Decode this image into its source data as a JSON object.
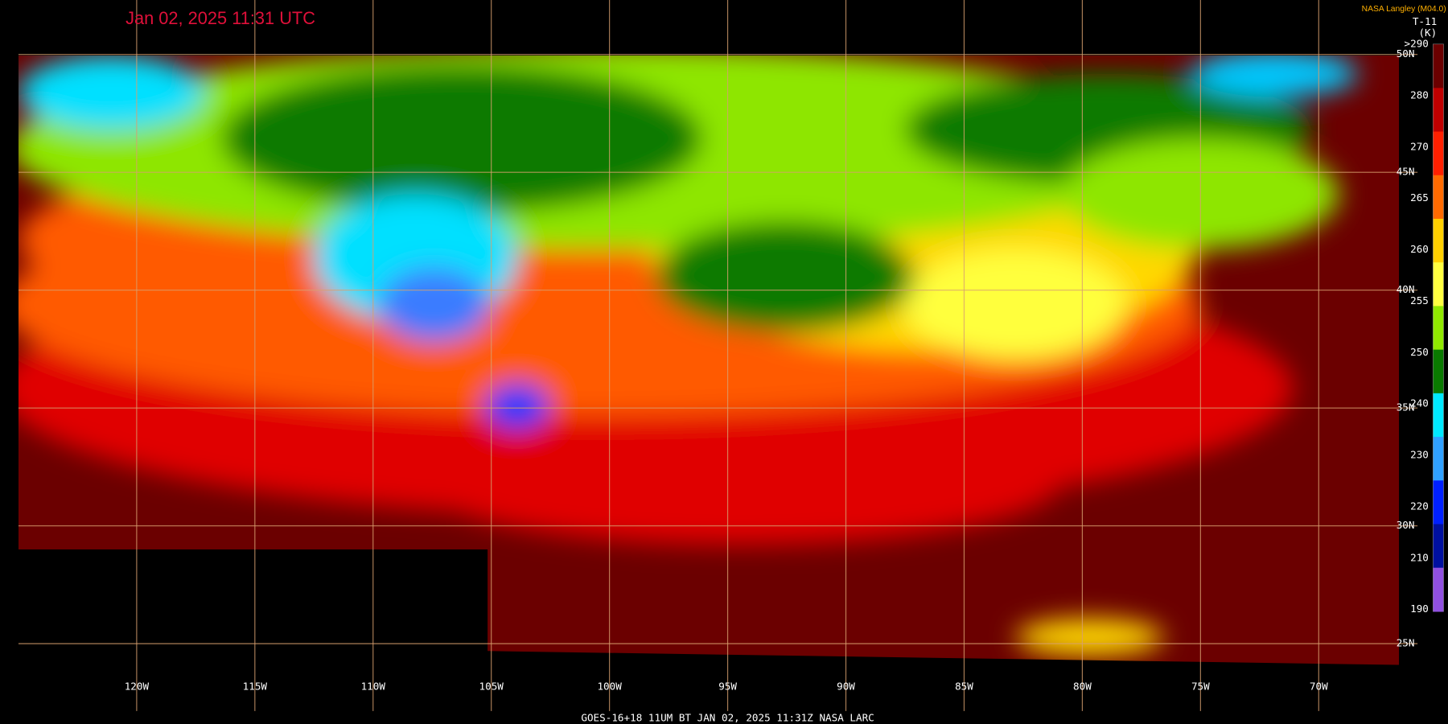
{
  "header": {
    "timestamp": "Jan 02, 2025 11:31 UTC",
    "producer": "NASA Langley (M04.0)",
    "channel": "T-11",
    "unit": "(K)"
  },
  "color_scale": {
    "labels": [
      ">290",
      "280",
      "270",
      "265",
      "260",
      "255",
      "250",
      "240",
      "230",
      "220",
      "210",
      "190"
    ]
  },
  "latitude_labels": [
    "50N",
    "45N",
    "40N",
    "35N",
    "30N",
    "25N"
  ],
  "longitude_labels": [
    "120W",
    "115W",
    "110W",
    "105W",
    "100W",
    "95W",
    "90W",
    "85W",
    "80W",
    "75W",
    "70W"
  ],
  "footer": "GOES-16+18  11UM BT   JAN 02, 2025 11:31Z   NASA LARC"
}
